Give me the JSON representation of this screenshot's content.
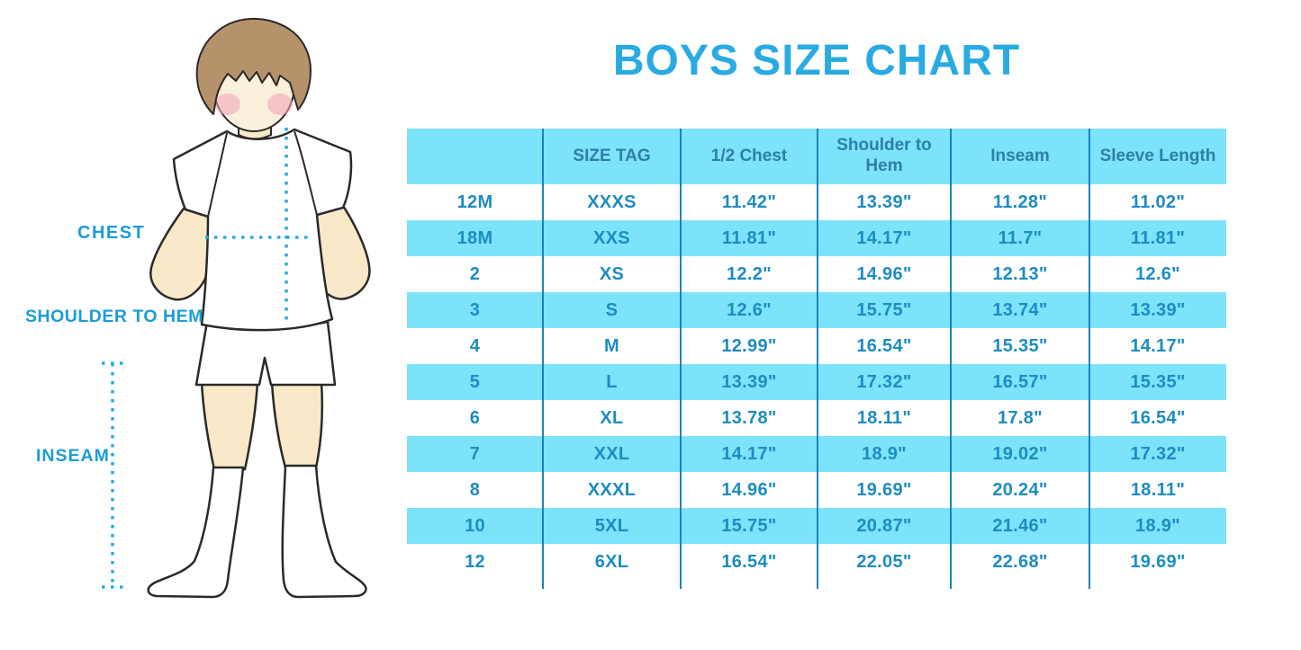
{
  "title": "BOYS SIZE CHART",
  "figure": {
    "labels": {
      "chest": "CHEST",
      "shoulder_to_hem": "SHOULDER TO HEM",
      "inseam": "INSEAM"
    }
  },
  "chart_data": {
    "type": "table",
    "title": "BOYS SIZE CHART",
    "columns": [
      "",
      "SIZE TAG",
      "1/2 Chest",
      "Shoulder to Hem",
      "Inseam",
      "Sleeve Length"
    ],
    "rows": [
      [
        "12M",
        "XXXS",
        "11.42\"",
        "13.39\"",
        "11.28\"",
        "11.02\""
      ],
      [
        "18M",
        "XXS",
        "11.81\"",
        "14.17\"",
        "11.7\"",
        "11.81\""
      ],
      [
        "2",
        "XS",
        "12.2\"",
        "14.96\"",
        "12.13\"",
        "12.6\""
      ],
      [
        "3",
        "S",
        "12.6\"",
        "15.75\"",
        "13.74\"",
        "13.39\""
      ],
      [
        "4",
        "M",
        "12.99\"",
        "16.54\"",
        "15.35\"",
        "14.17\""
      ],
      [
        "5",
        "L",
        "13.39\"",
        "17.32\"",
        "16.57\"",
        "15.35\""
      ],
      [
        "6",
        "XL",
        "13.78\"",
        "18.11\"",
        "17.8\"",
        "16.54\""
      ],
      [
        "7",
        "XXL",
        "14.17\"",
        "18.9\"",
        "19.02\"",
        "17.32\""
      ],
      [
        "8",
        "XXXL",
        "14.96\"",
        "19.69\"",
        "20.24\"",
        "18.11\""
      ],
      [
        "10",
        "5XL",
        "15.75\"",
        "20.87\"",
        "21.46\"",
        "18.9\""
      ],
      [
        "12",
        "6XL",
        "16.54\"",
        "22.05\"",
        "22.68\"",
        "19.69\""
      ]
    ],
    "layout": {
      "header_background": "#7DE3FA",
      "alternating_row_background": "#7DE3FA",
      "grid": "vertical-dividers-only"
    }
  },
  "colors": {
    "accent": "#29ABE2",
    "label": "#1B9CD8",
    "row-blue": "#7DE3FA",
    "header-text": "#2C7FA9",
    "cell-text": "#1D8CC1",
    "divider": "#1A85B5",
    "skin": "#FAE9C8",
    "face": "#FBF0DC",
    "hair": "#B6926B",
    "blush": "#F2A7BC",
    "outline": "#2A2A2A"
  }
}
